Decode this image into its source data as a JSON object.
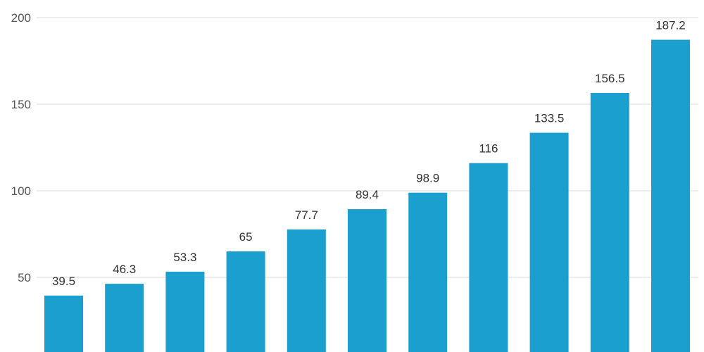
{
  "chart_data": {
    "type": "bar",
    "title": "",
    "xlabel": "",
    "ylabel": "",
    "ylim": [
      0,
      200
    ],
    "yticks": [
      50,
      100,
      150,
      200
    ],
    "grid": true,
    "color": "#1a9fce",
    "values": [
      39.5,
      46.3,
      53.3,
      65,
      77.7,
      89.4,
      98.9,
      116,
      133.5,
      156.5,
      187.2
    ],
    "labels": [
      "39.5",
      "46.3",
      "53.3",
      "65",
      "77.7",
      "89.4",
      "98.9",
      "116",
      "133.5",
      "156.5",
      "187.2"
    ]
  }
}
